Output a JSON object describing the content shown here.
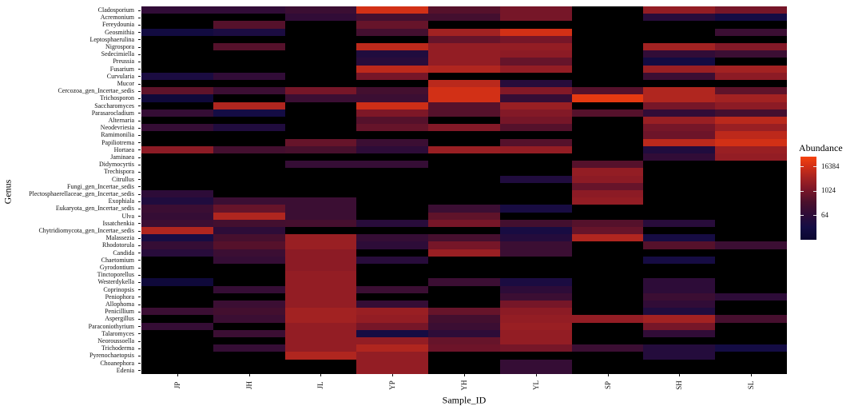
{
  "figure": {
    "y_axis_title": "Genus",
    "x_axis_title": "Sample_ID",
    "legend": {
      "title": "Abundance",
      "tick_labels": [
        "16384",
        "1024",
        "64"
      ],
      "tick_values": [
        16384,
        1024,
        64
      ]
    },
    "colors": {
      "background": "#ffffff",
      "panel_background": "#000000",
      "na_color": "#000000",
      "axis_text": "#111111"
    }
  },
  "chart_data": {
    "type": "heatmap",
    "xlabel": "Sample_ID",
    "ylabel": "Genus",
    "legend_title": "Abundance",
    "scale": "log2",
    "value_domain": [
      4,
      49152
    ],
    "legend_position": "right",
    "grid": false,
    "colormap_stops": [
      {
        "t": 0.0,
        "color": "#0B0630"
      },
      {
        "t": 0.15,
        "color": "#140C44"
      },
      {
        "t": 0.3,
        "color": "#2E0C38"
      },
      {
        "t": 0.45,
        "color": "#4A102C"
      },
      {
        "t": 0.6,
        "color": "#7A1628"
      },
      {
        "t": 0.75,
        "color": "#A62321"
      },
      {
        "t": 0.88,
        "color": "#D12F16"
      },
      {
        "t": 1.0,
        "color": "#F5420D"
      }
    ],
    "x": [
      "JP",
      "JH",
      "JL",
      "YP",
      "YH",
      "YL",
      "SP",
      "SH",
      "SL"
    ],
    "y": [
      "Cladosporium",
      "Acremonium",
      "Fereydounia",
      "Geosmithia",
      "Leptosphaerulina",
      "Nigrospora",
      "Sedecimiella",
      "Preussia",
      "Fusarium",
      "Curvularia",
      "Mucor",
      "Cercozoa_gen_Incertae_sedis",
      "Trichosporon",
      "Saccharomyces",
      "Parasarocladium",
      "Alternaria",
      "Neodevriesia",
      "Ramimonilia",
      "Papiliotrema",
      "Hortaea",
      "Jaminaea",
      "Didymocyrtis",
      "Trechispora",
      "Citrullus",
      "Fungi_gen_Incertae_sedis",
      "Plectosphaerellaceae_gen_Incertae_sedis",
      "Exophiala",
      "Eukaryota_gen_Incertae_sedis",
      "Ulva",
      "Issatchenkia",
      "Chytridiomycota_gen_Incertae_sedis",
      "Malassezia",
      "Rhodotorula",
      "Candida",
      "Chaetomium",
      "Gyrodontium",
      "Tinctoporellus",
      "Westerdykella",
      "Coprinopsis",
      "Peniophora",
      "Allophoma",
      "Penicillium",
      "Aspergillus",
      "Paraconiothyrium",
      "Talaromyces",
      "Neoroussoella",
      "Trichoderma",
      "Pyrenochaetopsis",
      "Choanephora",
      "Edenia"
    ],
    "values": [
      [
        80,
        80,
        128,
        16384,
        384,
        1024,
        0,
        2560,
        1024
      ],
      [
        0,
        0,
        80,
        192,
        192,
        1024,
        0,
        48,
        16
      ],
      [
        0,
        384,
        0,
        640,
        0,
        0,
        0,
        0,
        0
      ],
      [
        12,
        24,
        0,
        192,
        4096,
        16384,
        0,
        0,
        128
      ],
      [
        0,
        0,
        0,
        0,
        640,
        1024,
        0,
        0,
        0
      ],
      [
        0,
        384,
        0,
        9000,
        2560,
        2560,
        0,
        4096,
        1536
      ],
      [
        0,
        0,
        0,
        32,
        2560,
        2048,
        0,
        80,
        128
      ],
      [
        0,
        0,
        0,
        48,
        2560,
        640,
        0,
        14,
        0
      ],
      [
        0,
        0,
        0,
        9000,
        6144,
        2560,
        0,
        3072,
        4096
      ],
      [
        24,
        80,
        0,
        1024,
        0,
        0,
        0,
        128,
        2048
      ],
      [
        0,
        0,
        0,
        0,
        8192,
        48,
        0,
        0,
        0
      ],
      [
        512,
        128,
        1024,
        192,
        16384,
        1536,
        384,
        6144,
        512
      ],
      [
        8,
        0,
        128,
        128,
        16384,
        96,
        30000,
        6144,
        4096
      ],
      [
        0,
        6144,
        0,
        14000,
        384,
        3072,
        0,
        1024,
        2048
      ],
      [
        96,
        16,
        0,
        1280,
        384,
        1536,
        384,
        80,
        192
      ],
      [
        0,
        0,
        0,
        384,
        0,
        1024,
        0,
        3072,
        8192
      ],
      [
        96,
        32,
        0,
        640,
        1536,
        384,
        0,
        1024,
        3072
      ],
      [
        0,
        0,
        0,
        0,
        0,
        0,
        0,
        768,
        9000
      ],
      [
        0,
        0,
        640,
        128,
        0,
        384,
        0,
        8192,
        16384
      ],
      [
        2048,
        192,
        256,
        64,
        3072,
        2560,
        0,
        32,
        3072
      ],
      [
        0,
        0,
        0,
        0,
        0,
        0,
        0,
        80,
        2560
      ],
      [
        0,
        0,
        96,
        96,
        0,
        0,
        384,
        0,
        0
      ],
      [
        0,
        0,
        0,
        0,
        0,
        0,
        2560,
        0,
        0
      ],
      [
        0,
        0,
        0,
        0,
        0,
        32,
        2048,
        0,
        0
      ],
      [
        0,
        0,
        0,
        0,
        0,
        0,
        640,
        0,
        0
      ],
      [
        64,
        0,
        0,
        0,
        0,
        0,
        2048,
        0,
        0
      ],
      [
        32,
        128,
        128,
        0,
        0,
        0,
        2560,
        0,
        0
      ],
      [
        128,
        640,
        128,
        0,
        128,
        20,
        0,
        0,
        0
      ],
      [
        96,
        6144,
        128,
        0,
        512,
        0,
        0,
        0,
        0
      ],
      [
        128,
        192,
        224,
        48,
        1024,
        192,
        384,
        48,
        0
      ],
      [
        6144,
        64,
        0,
        0,
        0,
        20,
        640,
        0,
        0
      ],
      [
        20,
        224,
        3072,
        96,
        224,
        40,
        6144,
        18,
        0
      ],
      [
        96,
        384,
        3072,
        64,
        1024,
        128,
        0,
        384,
        128
      ],
      [
        48,
        128,
        2048,
        0,
        3072,
        128,
        0,
        0,
        0
      ],
      [
        0,
        96,
        2048,
        48,
        0,
        0,
        0,
        18,
        0
      ],
      [
        0,
        0,
        2048,
        0,
        0,
        0,
        0,
        0,
        0
      ],
      [
        0,
        0,
        2560,
        0,
        0,
        0,
        0,
        0,
        0
      ],
      [
        8,
        0,
        2560,
        0,
        128,
        24,
        0,
        64,
        0
      ],
      [
        0,
        96,
        2560,
        128,
        0,
        64,
        0,
        64,
        0
      ],
      [
        0,
        0,
        2560,
        0,
        0,
        128,
        0,
        128,
        64
      ],
      [
        0,
        128,
        2560,
        96,
        0,
        1024,
        0,
        80,
        0
      ],
      [
        128,
        192,
        4096,
        3072,
        640,
        2048,
        0,
        32,
        0
      ],
      [
        0,
        128,
        4096,
        2560,
        192,
        2560,
        2560,
        4096,
        224
      ],
      [
        96,
        0,
        2560,
        1024,
        128,
        3072,
        0,
        1024,
        0
      ],
      [
        0,
        128,
        2560,
        18,
        64,
        2560,
        0,
        80,
        0
      ],
      [
        0,
        0,
        2560,
        2560,
        640,
        2560,
        0,
        0,
        0
      ],
      [
        0,
        96,
        2560,
        6144,
        768,
        1024,
        128,
        40,
        16
      ],
      [
        0,
        0,
        6144,
        2560,
        0,
        0,
        0,
        40,
        0
      ],
      [
        0,
        0,
        0,
        2560,
        0,
        96,
        0,
        0,
        0
      ],
      [
        0,
        0,
        0,
        2560,
        0,
        96,
        0,
        0,
        0
      ]
    ]
  }
}
